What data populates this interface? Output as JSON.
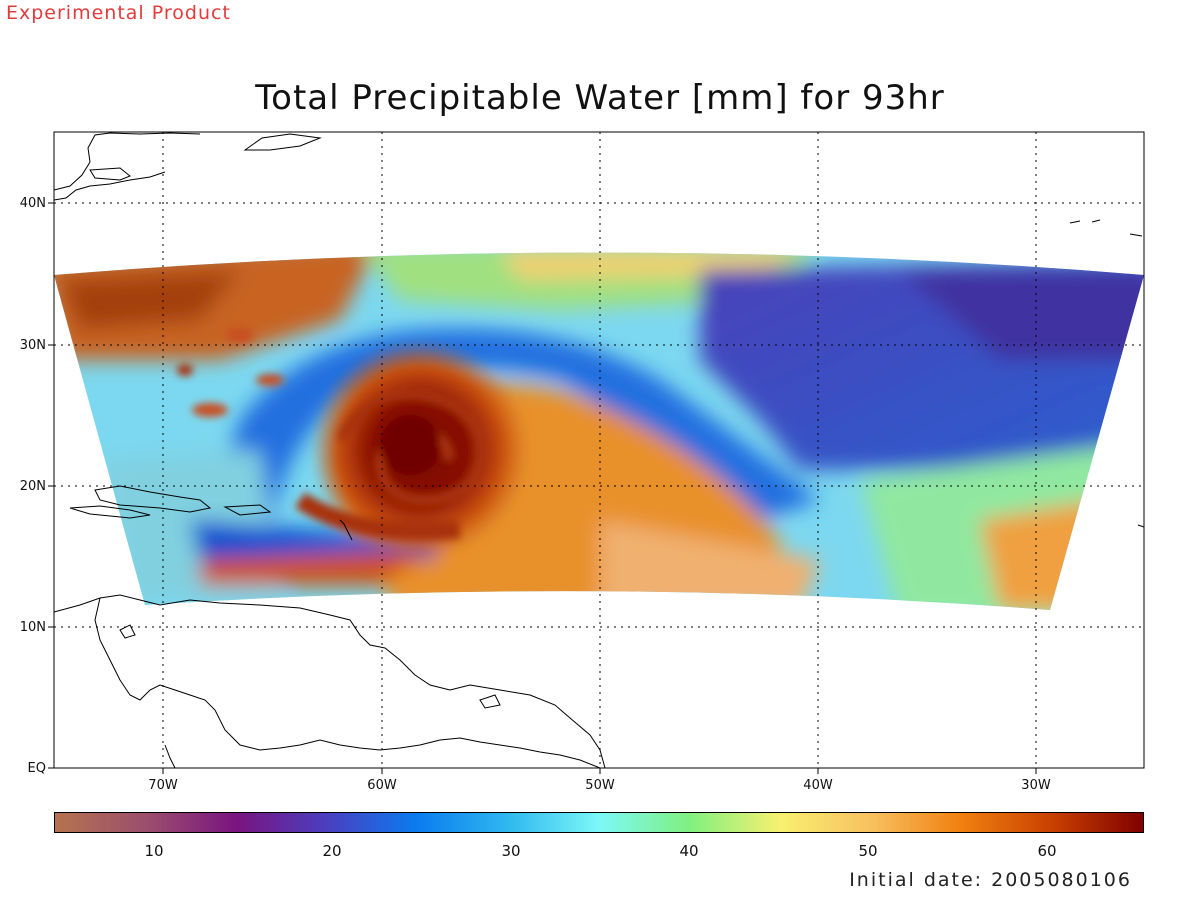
{
  "header": {
    "experimental_label": "Experimental Product",
    "title": "Total Precipitable Water [mm] for 93hr"
  },
  "map": {
    "lat_labels": [
      "40N",
      "30N",
      "20N",
      "10N",
      "EQ"
    ],
    "lon_labels": [
      "70W",
      "60W",
      "50W",
      "40W",
      "30W"
    ],
    "lon_range": [
      -75,
      -25
    ],
    "lat_range": [
      0,
      45
    ],
    "grid": "dotted",
    "field": "Total Precipitable Water",
    "hurricane_center": {
      "lon": -57.5,
      "lat": 22
    }
  },
  "colorbar": {
    "min": 5,
    "max": 65,
    "tick_labels": [
      "10",
      "20",
      "30",
      "40",
      "50",
      "60"
    ],
    "tick_values": [
      10,
      20,
      30,
      40,
      50,
      60
    ],
    "colors": [
      "#b5734f",
      "#9b4f6c",
      "#7a1480",
      "#4a3fc0",
      "#0a7cf0",
      "#30b8f0",
      "#7cf8f8",
      "#80f080",
      "#f8f070",
      "#f8c060",
      "#f08010",
      "#c84000",
      "#800000"
    ]
  },
  "footer": {
    "initial_date": "Initial date: 2005080106"
  }
}
